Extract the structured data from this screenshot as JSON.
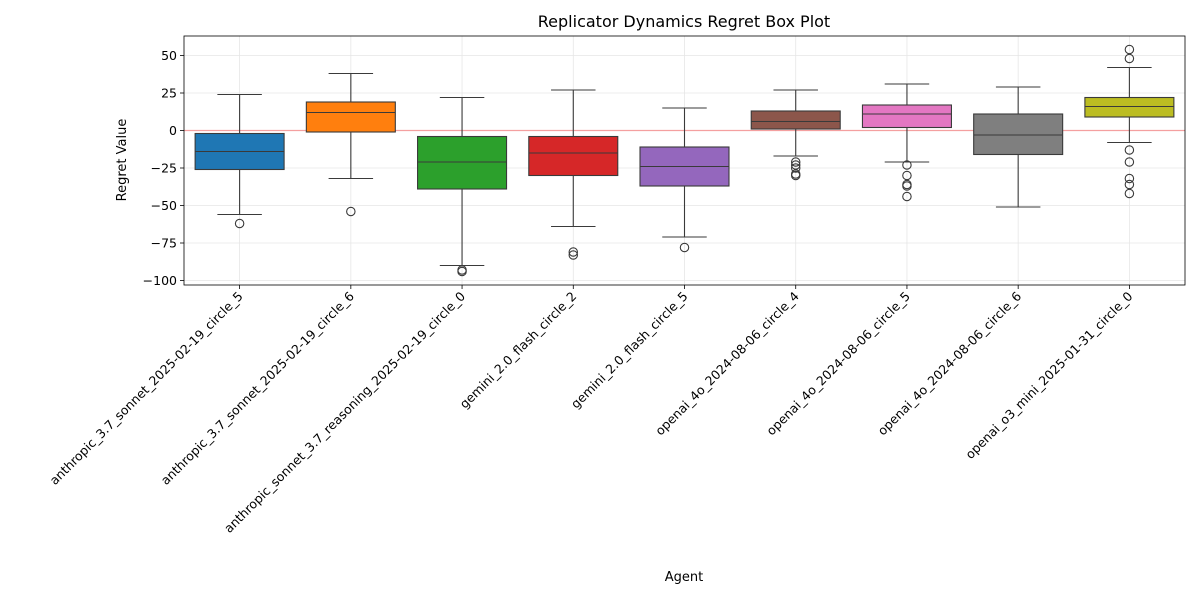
{
  "chart_data": {
    "type": "box",
    "title": "Replicator Dynamics Regret Box Plot",
    "xlabel": "Agent",
    "ylabel": "Regret Value",
    "ylim": [
      -103,
      63
    ],
    "yticks": [
      50,
      25,
      0,
      -25,
      -50,
      -75,
      -100
    ],
    "ytick_labels": [
      "50",
      "25",
      "0",
      "−25",
      "−50",
      "−75",
      "−100"
    ],
    "grid": true,
    "reference_line": {
      "y": 0,
      "color": "#f4a0a0"
    },
    "categories": [
      "anthropic_3.7_sonnet_2025-02-19_circle_5",
      "anthropic_3.7_sonnet_2025-02-19_circle_6",
      "anthropic_sonnet_3.7_reasoning_2025-02-19_circle_0",
      "gemini_2.0_flash_circle_2",
      "gemini_2.0_flash_circle_5",
      "openai_4o_2024-08-06_circle_4",
      "openai_4o_2024-08-06_circle_5",
      "openai_4o_2024-08-06_circle_6",
      "openai_o3_mini_2025-01-31_circle_0"
    ],
    "boxes": [
      {
        "whisker_low": -56,
        "q1": -26,
        "median": -14,
        "q3": -2,
        "whisker_high": 24,
        "outliers": [
          -62
        ],
        "color": "#1f77b4"
      },
      {
        "whisker_low": -32,
        "q1": -1,
        "median": 12,
        "q3": 19,
        "whisker_high": 38,
        "outliers": [
          -54
        ],
        "color": "#ff7f0e"
      },
      {
        "whisker_low": -90,
        "q1": -39,
        "median": -21,
        "q3": -4,
        "whisker_high": 22,
        "outliers": [
          -93,
          -94
        ],
        "color": "#2ca02c"
      },
      {
        "whisker_low": -64,
        "q1": -30,
        "median": -15,
        "q3": -4,
        "whisker_high": 27,
        "outliers": [
          -81,
          -83
        ],
        "color": "#d62728"
      },
      {
        "whisker_low": -71,
        "q1": -37,
        "median": -24,
        "q3": -11,
        "whisker_high": 15,
        "outliers": [
          -78
        ],
        "color": "#9467bd"
      },
      {
        "whisker_low": -17,
        "q1": 1,
        "median": 6,
        "q3": 13,
        "whisker_high": 27,
        "outliers": [
          -21,
          -23,
          -25,
          -29,
          -30
        ],
        "color": "#8c564b"
      },
      {
        "whisker_low": -21,
        "q1": 2,
        "median": 11,
        "q3": 17,
        "whisker_high": 31,
        "outliers": [
          -23,
          -30,
          -36,
          -37,
          -44
        ],
        "color": "#e377c2"
      },
      {
        "whisker_low": -51,
        "q1": -16,
        "median": -3,
        "q3": 11,
        "whisker_high": 29,
        "outliers": [],
        "color": "#7f7f7f"
      },
      {
        "whisker_low": -8,
        "q1": 9,
        "median": 16,
        "q3": 22,
        "whisker_high": 42,
        "outliers": [
          54,
          48,
          -13,
          -21,
          -32,
          -36,
          -42
        ],
        "color": "#bcbd22"
      }
    ]
  }
}
